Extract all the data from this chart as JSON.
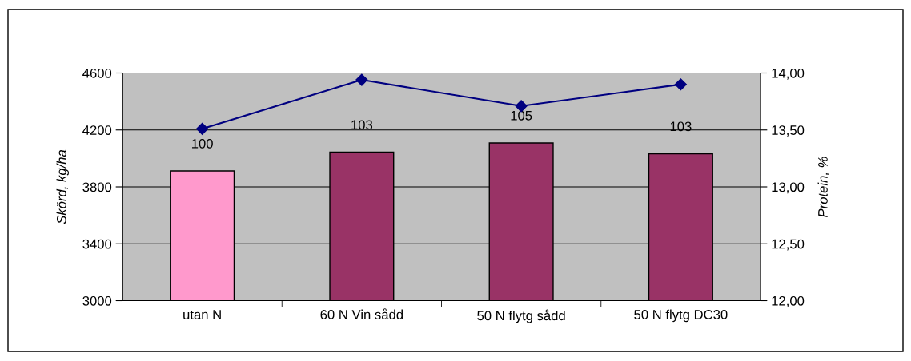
{
  "chart_data": {
    "type": "bar",
    "ylabel": "Skörd, kg/ha",
    "y2label": "Protein, %",
    "categories": [
      "utan N",
      "60 N Vin sådd",
      "50 N flytg sådd",
      "50 N flytg DC30"
    ],
    "series": [
      {
        "colors": [
          "#ff99cc",
          "#993366",
          "#993366",
          "#993366"
        ],
        "values": [
          3912,
          4044,
          4109,
          4033
        ]
      },
      {
        "type": "line",
        "axis": "y2",
        "color": "#000080",
        "marker": "diamond",
        "values": [
          13.51,
          13.94,
          13.71,
          13.9
        ]
      }
    ],
    "ylim": [
      3000,
      4600
    ],
    "yticks": [
      3000,
      3400,
      3800,
      4200,
      4600
    ],
    "y2lim": [
      12,
      14
    ],
    "y2ticks": [
      {
        "value": 12,
        "label": "12,00"
      },
      {
        "value": 12.5,
        "label": "12,50"
      },
      {
        "value": 13,
        "label": "13,00"
      },
      {
        "value": 13.5,
        "label": "13,50"
      },
      {
        "value": 14,
        "label": "14,00"
      }
    ],
    "annotations": [
      {
        "text": "100",
        "x": "utan N",
        "y": 3912
      },
      {
        "text": "103",
        "x": "60 N Vin sådd",
        "y": 4044
      },
      {
        "text": "105",
        "x": "50 N flytg sådd",
        "y": 4109
      },
      {
        "text": "103",
        "x": "50 N flytg DC30",
        "y": 4033
      }
    ],
    "grid": "y"
  }
}
